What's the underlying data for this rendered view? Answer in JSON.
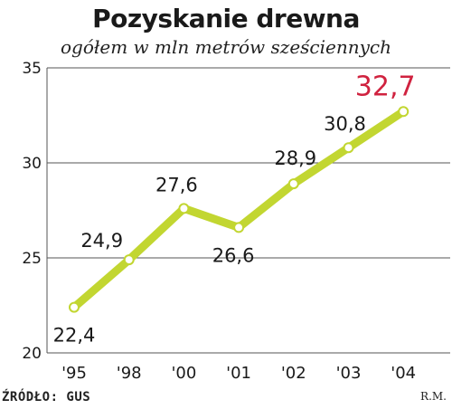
{
  "title": "Pozyskanie drewna",
  "subtitle": "ogółem w mln metrów sześciennych",
  "footer": {
    "source": "ŹRÓDŁO: GUS",
    "author": "R.M."
  },
  "colors": {
    "line": "#c2d631",
    "highlight": "#d0223f",
    "text": "#1a1a1a",
    "grid": "#555555"
  },
  "chart_data": {
    "type": "line",
    "title": "Pozyskanie drewna",
    "subtitle": "ogółem w mln metrów sześciennych",
    "categories": [
      "'95",
      "'98",
      "'00",
      "'01",
      "'02",
      "'03",
      "'04"
    ],
    "series": [
      {
        "values": [
          22.4,
          24.9,
          27.6,
          26.6,
          28.9,
          30.8,
          32.7
        ]
      }
    ],
    "data_labels": [
      "22,4",
      "24,9",
      "27,6",
      "26,6",
      "28,9",
      "30,8",
      "32,7"
    ],
    "highlight_index": 6,
    "ylim": [
      20,
      35
    ],
    "yticks": [
      20,
      25,
      30,
      35
    ],
    "ytick_labels": [
      "20",
      "25",
      "30",
      "35"
    ],
    "grid": true,
    "legend": "none"
  }
}
